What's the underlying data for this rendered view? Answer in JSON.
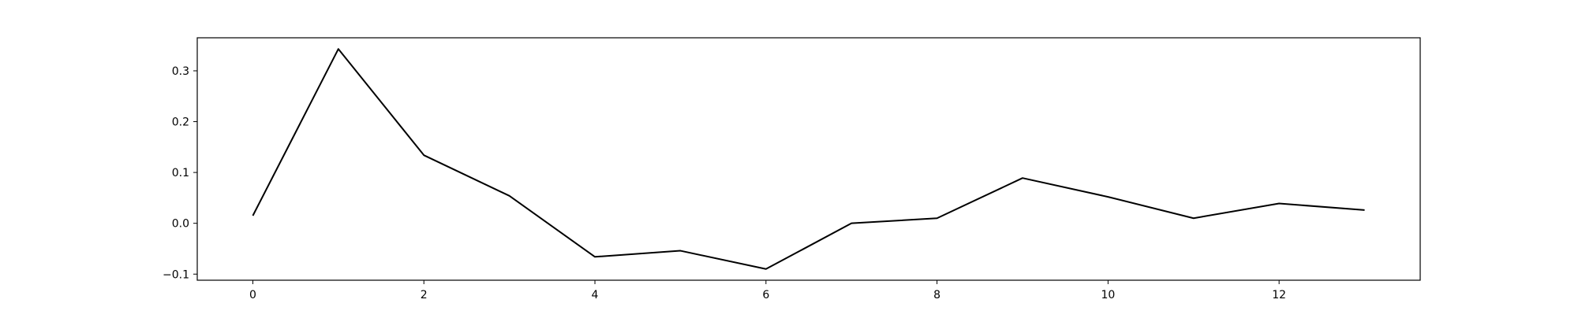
{
  "chart_data": {
    "type": "line",
    "title": "",
    "xlabel": "",
    "ylabel": "",
    "x": [
      0,
      1,
      2,
      3,
      4,
      5,
      6,
      7,
      8,
      9,
      10,
      11,
      12,
      13
    ],
    "series": [
      {
        "values": [
          0.015,
          0.343,
          0.134,
          0.054,
          -0.066,
          -0.054,
          -0.09,
          0.0,
          0.01,
          0.089,
          0.052,
          0.01,
          0.039,
          0.026
        ],
        "color": "#000000"
      }
    ],
    "xlim": [
      -0.65,
      13.65
    ],
    "ylim": [
      -0.112,
      0.365
    ],
    "xticks": [
      0,
      2,
      4,
      6,
      8,
      10,
      12
    ],
    "xtick_labels": [
      "0",
      "2",
      "4",
      "6",
      "8",
      "10",
      "12"
    ],
    "yticks": [
      -0.1,
      0.0,
      0.1,
      0.2,
      0.3
    ],
    "ytick_labels": [
      "−0.1",
      "0.0",
      "0.1",
      "0.2",
      "0.3"
    ],
    "grid": false,
    "legend": false
  }
}
